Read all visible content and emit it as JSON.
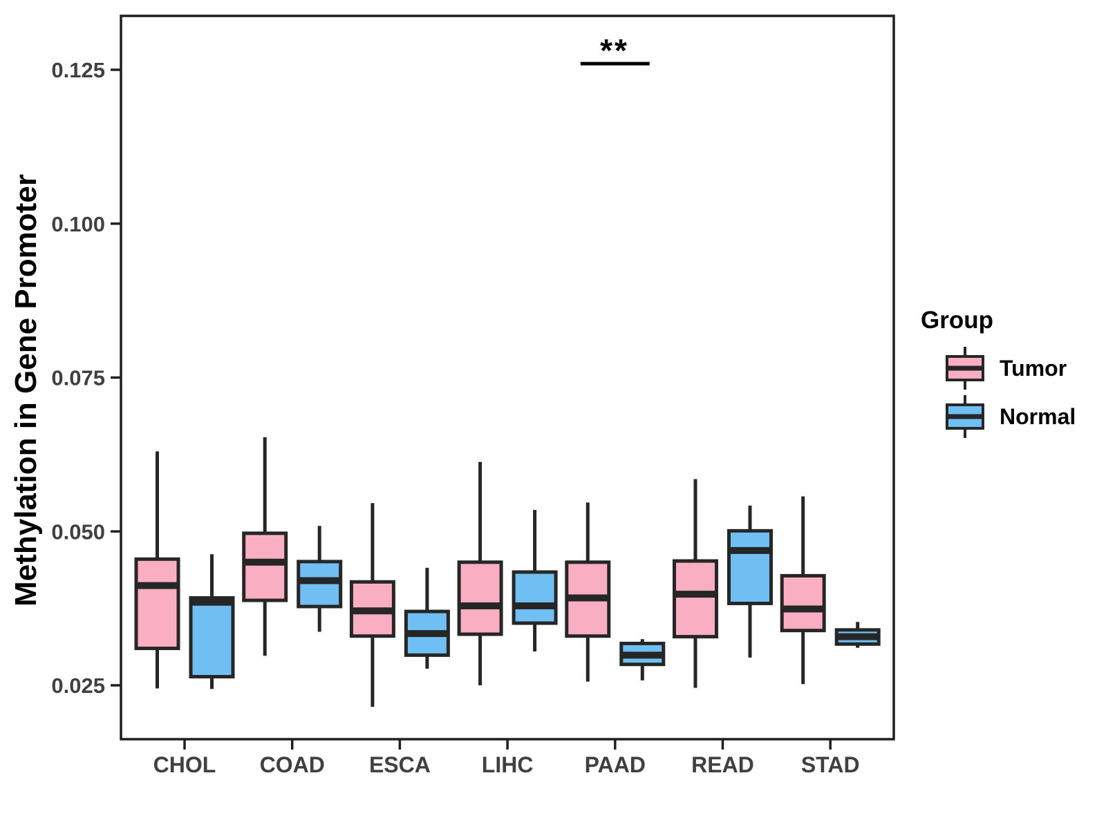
{
  "figure": {
    "ylabel": "Methylation in Gene Promoter",
    "xlabel": ""
  },
  "legend": {
    "title": "Group",
    "items": [
      {
        "label": "Tumor",
        "color": "#FAAEC2"
      },
      {
        "label": "Normal",
        "color": "#70BFF2"
      }
    ]
  },
  "significance": {
    "label": "**",
    "category": "PAAD",
    "bar_value": 0.126
  },
  "style": {
    "box_stroke": "#262626",
    "axis_color": "#1f1f1f",
    "tick_label_color": "#404040"
  },
  "chart_data": {
    "type": "boxplot",
    "title": "",
    "xlabel": "",
    "ylabel": "Methylation in Gene Promoter",
    "categories": [
      "CHOL",
      "COAD",
      "ESCA",
      "LIHC",
      "PAAD",
      "READ",
      "STAD"
    ],
    "ytick_labels": [
      "0.025",
      "0.050",
      "0.075",
      "0.100",
      "0.125"
    ],
    "yticks": [
      0.025,
      0.05,
      0.075,
      0.1,
      0.125
    ],
    "ylim": [
      0.0145,
      0.131
    ],
    "grid": false,
    "legend_position": "right",
    "series": [
      {
        "name": "Tumor",
        "color": "#FAAEC2",
        "boxes": [
          {
            "category": "CHOL",
            "whisker_low": 0.0245,
            "q1": 0.031,
            "median": 0.0412,
            "q3": 0.0455,
            "whisker_high": 0.063
          },
          {
            "category": "COAD",
            "whisker_low": 0.0298,
            "q1": 0.0388,
            "median": 0.045,
            "q3": 0.0497,
            "whisker_high": 0.0653
          },
          {
            "category": "ESCA",
            "whisker_low": 0.0215,
            "q1": 0.033,
            "median": 0.0371,
            "q3": 0.0418,
            "whisker_high": 0.0546
          },
          {
            "category": "LIHC",
            "whisker_low": 0.025,
            "q1": 0.0333,
            "median": 0.0379,
            "q3": 0.045,
            "whisker_high": 0.0613
          },
          {
            "category": "PAAD",
            "whisker_low": 0.0256,
            "q1": 0.033,
            "median": 0.0392,
            "q3": 0.045,
            "whisker_high": 0.0547
          },
          {
            "category": "READ",
            "whisker_low": 0.0246,
            "q1": 0.0329,
            "median": 0.0398,
            "q3": 0.0452,
            "whisker_high": 0.0585
          },
          {
            "category": "STAD",
            "whisker_low": 0.0252,
            "q1": 0.0339,
            "median": 0.0374,
            "q3": 0.0428,
            "whisker_high": 0.0557
          }
        ]
      },
      {
        "name": "Normal",
        "color": "#70BFF2",
        "boxes": [
          {
            "category": "CHOL",
            "whisker_low": 0.0244,
            "q1": 0.0264,
            "median": 0.0385,
            "q3": 0.0392,
            "whisker_high": 0.0463
          },
          {
            "category": "COAD",
            "whisker_low": 0.0337,
            "q1": 0.0378,
            "median": 0.042,
            "q3": 0.0451,
            "whisker_high": 0.0509
          },
          {
            "category": "ESCA",
            "whisker_low": 0.0277,
            "q1": 0.0299,
            "median": 0.0334,
            "q3": 0.037,
            "whisker_high": 0.0441
          },
          {
            "category": "LIHC",
            "whisker_low": 0.0305,
            "q1": 0.0351,
            "median": 0.0379,
            "q3": 0.0434,
            "whisker_high": 0.0535
          },
          {
            "category": "PAAD",
            "whisker_low": 0.0258,
            "q1": 0.0284,
            "median": 0.0299,
            "q3": 0.0318,
            "whisker_high": 0.0325
          },
          {
            "category": "READ",
            "whisker_low": 0.0295,
            "q1": 0.0383,
            "median": 0.0469,
            "q3": 0.0501,
            "whisker_high": 0.0542
          },
          {
            "category": "STAD",
            "whisker_low": 0.0311,
            "q1": 0.0317,
            "median": 0.0329,
            "q3": 0.034,
            "whisker_high": 0.0353
          }
        ]
      }
    ]
  }
}
